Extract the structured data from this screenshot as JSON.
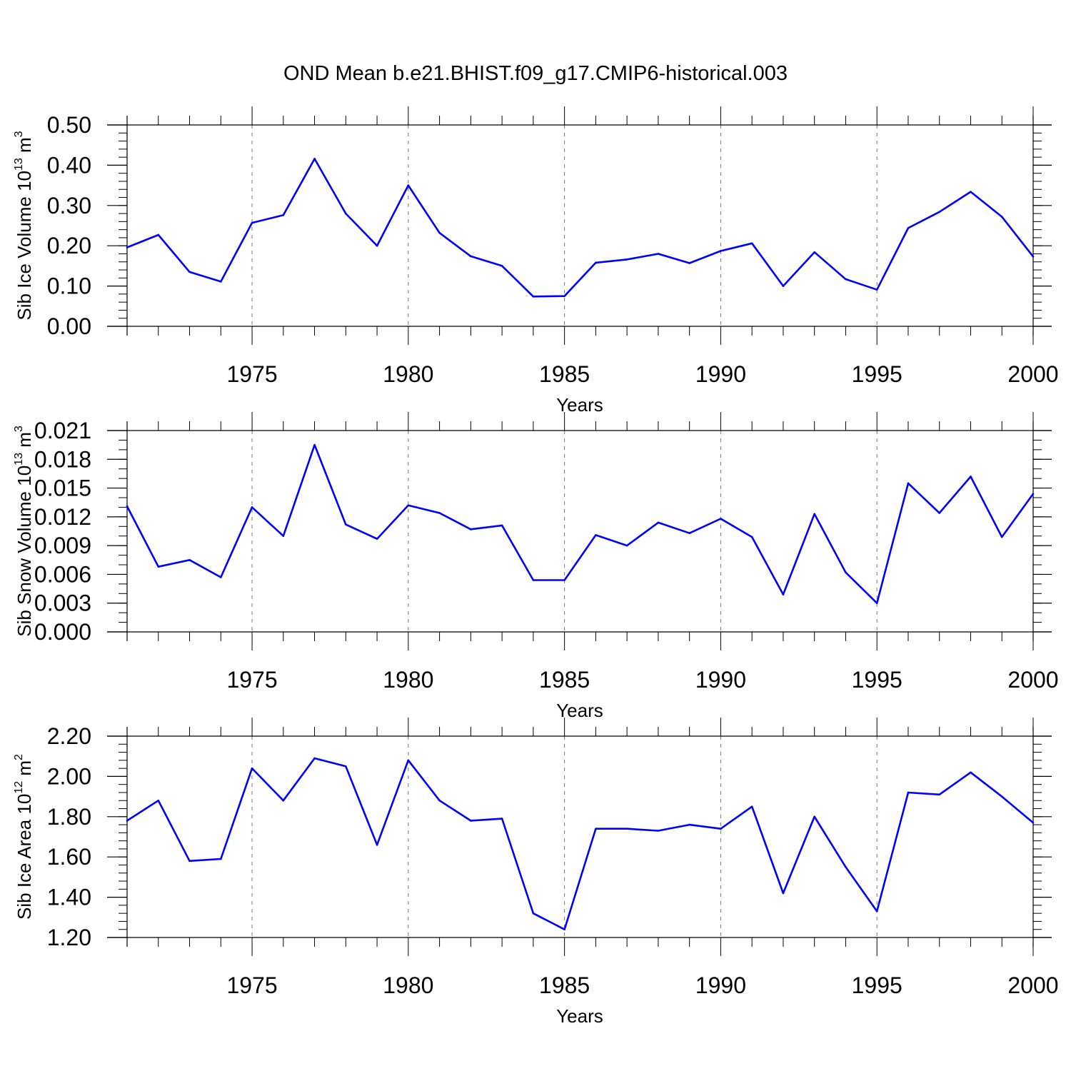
{
  "title": "OND Mean b.e21.BHIST.f09_g17.CMIP6-historical.003",
  "colors": {
    "line": "#0000ff",
    "axis": "#000000",
    "grid": "#777777"
  },
  "chart_data": [
    {
      "type": "line",
      "name": "ice-volume",
      "ylabel": {
        "text": "Sib Ice Volume 10",
        "exp": "13",
        "unit": " m",
        "unit_exp": "3"
      },
      "xlabel": "Years",
      "xlim": [
        1971,
        2000
      ],
      "ylim": [
        0.0,
        0.5
      ],
      "yticks": [
        "0.00",
        "0.10",
        "0.20",
        "0.30",
        "0.40",
        "0.50"
      ],
      "ytick_values": [
        0.0,
        0.1,
        0.2,
        0.3,
        0.4,
        0.5
      ],
      "yminor_step": 0.02,
      "xticks": [
        "1975",
        "1980",
        "1985",
        "1990",
        "1995",
        "2000"
      ],
      "xtick_values": [
        1975,
        1980,
        1985,
        1990,
        1995,
        2000
      ],
      "grid": "vertical-dashed",
      "x": [
        1971,
        1972,
        1973,
        1974,
        1975,
        1976,
        1977,
        1978,
        1979,
        1980,
        1981,
        1982,
        1983,
        1984,
        1985,
        1986,
        1987,
        1988,
        1989,
        1990,
        1991,
        1992,
        1993,
        1994,
        1995,
        1996,
        1997,
        1998,
        1999,
        2000
      ],
      "values": [
        0.196,
        0.227,
        0.135,
        0.111,
        0.257,
        0.276,
        0.416,
        0.28,
        0.2,
        0.35,
        0.232,
        0.174,
        0.15,
        0.074,
        0.075,
        0.158,
        0.166,
        0.18,
        0.157,
        0.187,
        0.206,
        0.1,
        0.184,
        0.117,
        0.091,
        0.244,
        0.284,
        0.334,
        0.272,
        0.173
      ]
    },
    {
      "type": "line",
      "name": "snow-volume",
      "ylabel": {
        "text": "Sib Snow Volume 10",
        "exp": "13",
        "unit": " m",
        "unit_exp": "3"
      },
      "xlabel": "Years",
      "xlim": [
        1971,
        2000
      ],
      "ylim": [
        0.0,
        0.021
      ],
      "yticks": [
        "0.000",
        "0.003",
        "0.006",
        "0.009",
        "0.012",
        "0.015",
        "0.018",
        "0.021"
      ],
      "ytick_values": [
        0.0,
        0.003,
        0.006,
        0.009,
        0.012,
        0.015,
        0.018,
        0.021
      ],
      "yminor_step": 0.001,
      "xticks": [
        "1975",
        "1980",
        "1985",
        "1990",
        "1995",
        "2000"
      ],
      "xtick_values": [
        1975,
        1980,
        1985,
        1990,
        1995,
        2000
      ],
      "grid": "vertical-dashed",
      "x": [
        1971,
        1972,
        1973,
        1974,
        1975,
        1976,
        1977,
        1978,
        1979,
        1980,
        1981,
        1982,
        1983,
        1984,
        1985,
        1986,
        1987,
        1988,
        1989,
        1990,
        1991,
        1992,
        1993,
        1994,
        1995,
        1996,
        1997,
        1998,
        1999,
        2000
      ],
      "values": [
        0.0131,
        0.0068,
        0.0075,
        0.0057,
        0.013,
        0.01,
        0.0195,
        0.0112,
        0.0097,
        0.0132,
        0.0124,
        0.0107,
        0.0111,
        0.0054,
        0.0054,
        0.0101,
        0.009,
        0.0114,
        0.0103,
        0.0118,
        0.0099,
        0.0039,
        0.0123,
        0.0062,
        0.003,
        0.0155,
        0.0124,
        0.0162,
        0.0099,
        0.0144
      ]
    },
    {
      "type": "line",
      "name": "ice-area",
      "ylabel": {
        "text": "Sib Ice Area 10",
        "exp": "12",
        "unit": " m",
        "unit_exp": "2"
      },
      "xlabel": "Years",
      "xlim": [
        1971,
        2000
      ],
      "ylim": [
        1.2,
        2.2
      ],
      "yticks": [
        "1.20",
        "1.40",
        "1.60",
        "1.80",
        "2.00",
        "2.20"
      ],
      "ytick_values": [
        1.2,
        1.4,
        1.6,
        1.8,
        2.0,
        2.2
      ],
      "yminor_step": 0.04,
      "xticks": [
        "1975",
        "1980",
        "1985",
        "1990",
        "1995",
        "2000"
      ],
      "xtick_values": [
        1975,
        1980,
        1985,
        1990,
        1995,
        2000
      ],
      "grid": "vertical-dashed",
      "x": [
        1971,
        1972,
        1973,
        1974,
        1975,
        1976,
        1977,
        1978,
        1979,
        1980,
        1981,
        1982,
        1983,
        1984,
        1985,
        1986,
        1987,
        1988,
        1989,
        1990,
        1991,
        1992,
        1993,
        1994,
        1995,
        1996,
        1997,
        1998,
        1999,
        2000
      ],
      "values": [
        1.78,
        1.88,
        1.58,
        1.59,
        2.04,
        1.88,
        2.09,
        2.05,
        1.66,
        2.08,
        1.88,
        1.78,
        1.79,
        1.32,
        1.24,
        1.74,
        1.74,
        1.73,
        1.76,
        1.74,
        1.85,
        1.42,
        1.8,
        1.55,
        1.33,
        1.92,
        1.91,
        2.02,
        1.9,
        1.77
      ]
    }
  ]
}
